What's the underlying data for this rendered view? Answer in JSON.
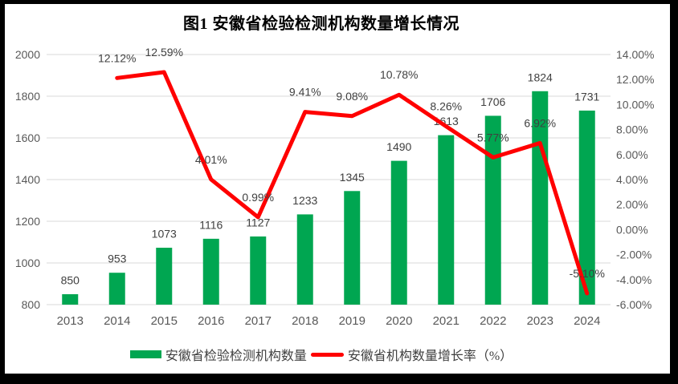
{
  "title": "图1 安徽省检验检测机构数量增长情况",
  "chart_data": {
    "type": "combo-bar-line",
    "categories": [
      "2013",
      "2014",
      "2015",
      "2016",
      "2017",
      "2018",
      "2019",
      "2020",
      "2021",
      "2022",
      "2023",
      "2024"
    ],
    "series": [
      {
        "name": "安徽省检验检测机构数量",
        "chart": "bar",
        "axis": "left",
        "color": "#00A651",
        "values": [
          850,
          953,
          1073,
          1116,
          1127,
          1233,
          1345,
          1490,
          1613,
          1706,
          1824,
          1731
        ],
        "labels": [
          "850",
          "953",
          "1073",
          "1116",
          "1127",
          "1233",
          "1345",
          "1490",
          "1613",
          "1706",
          "1824",
          "1731"
        ]
      },
      {
        "name": "安徽省机构数量增长率（%）",
        "chart": "line",
        "axis": "right",
        "color": "#FF0000",
        "values": [
          null,
          12.12,
          12.59,
          4.01,
          0.99,
          9.41,
          9.08,
          10.78,
          8.26,
          5.77,
          6.92,
          -5.1
        ],
        "labels": [
          "",
          "12.12%",
          "12.59%",
          "4.01%",
          "0.99%",
          "9.41%",
          "9.08%",
          "10.78%",
          "8.26%",
          "5.77%",
          "6.92%",
          "-5.10%"
        ]
      }
    ],
    "left_axis": {
      "min": 800,
      "max": 2000,
      "step": 200,
      "tick_values": [
        2000,
        1800,
        1600,
        1400,
        1200,
        1000,
        800
      ],
      "tick_labels": [
        "2000",
        "1800",
        "1600",
        "1400",
        "1200",
        "1000",
        "800"
      ]
    },
    "right_axis": {
      "min": -6,
      "max": 14,
      "step": 2,
      "tick_values": [
        14,
        12,
        10,
        8,
        6,
        4,
        2,
        0,
        -2,
        -4,
        -6
      ],
      "tick_labels": [
        "14.00%",
        "12.00%",
        "10.00%",
        "8.00%",
        "6.00%",
        "4.00%",
        "2.00%",
        "0.00%",
        "-2.00%",
        "-4.00%",
        "-6.00%"
      ]
    },
    "grid": true,
    "legend_position": "bottom"
  },
  "legend": {
    "items": [
      {
        "label": "安徽省检验检测机构数量",
        "swatch": "bar",
        "color": "#00A651"
      },
      {
        "label": "安徽省机构数量增长率（%）",
        "swatch": "line",
        "color": "#FF0000"
      }
    ]
  },
  "colors": {
    "background": "#FFFFFF",
    "frame": "#000000",
    "grid": "#D9D9D9",
    "axis_text": "#595959",
    "data_label_text": "#404040",
    "title_text": "#000000"
  }
}
